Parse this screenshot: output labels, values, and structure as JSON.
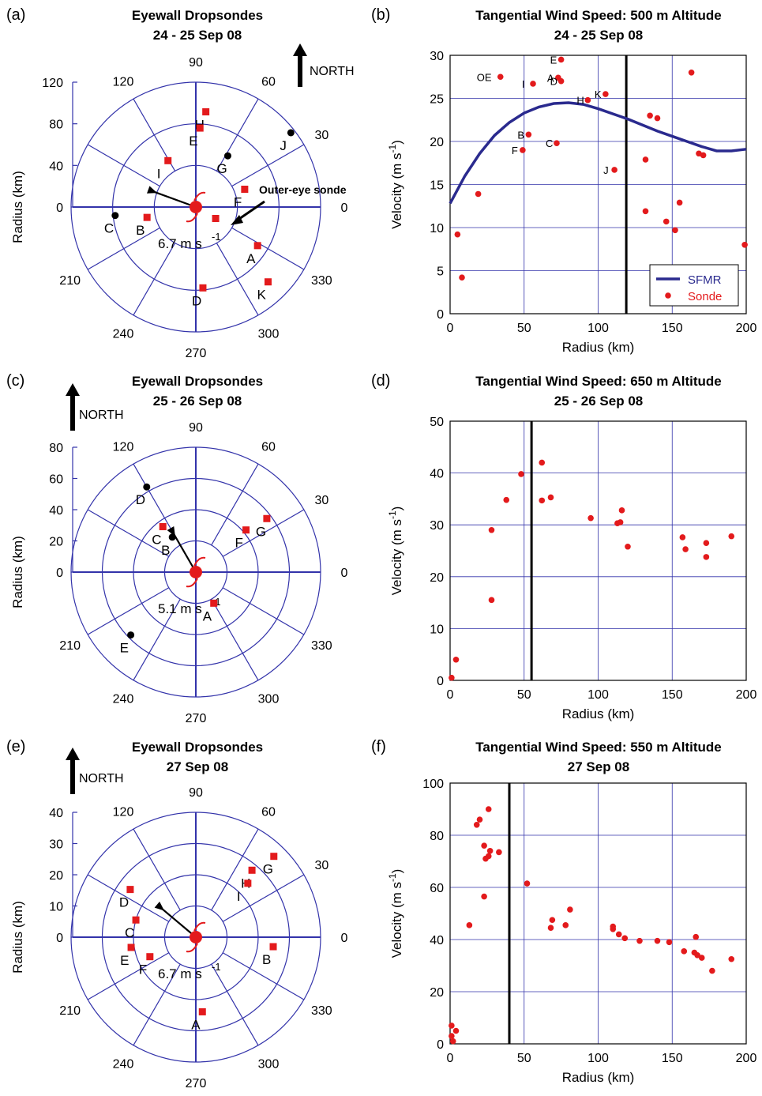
{
  "colors": {
    "grid": "#3333aa",
    "sonde": "#e31a1c",
    "sfmr": "#2a2a8e",
    "black": "#000000"
  },
  "chart_data": [
    {
      "id": "a",
      "type": "polar-scatter",
      "panel_label": "(a)",
      "title": [
        "Eyewall Dropsondes",
        "24 - 25 Sep 08"
      ],
      "ylabel": "Radius (km)",
      "rmax": 120,
      "ring_step": 40,
      "radial_ticks": [
        "0",
        "40",
        "80",
        "120"
      ],
      "angle_labels": [
        "0",
        "30",
        "60",
        "90",
        "120",
        "210",
        "240",
        "270",
        "300",
        "330"
      ],
      "north_label": "NORTH",
      "motion_label": "6.7 m s",
      "motion_sup": "-1",
      "motion_dir_deg": 160,
      "annotation": "Outer-eye sonde",
      "points": [
        {
          "label": "H",
          "r": 92,
          "theta": 84,
          "color": "red"
        },
        {
          "label": "E",
          "r": 76,
          "theta": 87,
          "color": "red"
        },
        {
          "label": "J",
          "r": 116,
          "theta": 38,
          "color": "black"
        },
        {
          "label": "G",
          "r": 58,
          "theta": 58,
          "color": "black"
        },
        {
          "label": "I",
          "r": 52,
          "theta": 121,
          "color": "red"
        },
        {
          "label": "F",
          "r": 50,
          "theta": 20,
          "color": "red"
        },
        {
          "label": "B",
          "r": 48,
          "theta": 192,
          "color": "red"
        },
        {
          "label": "C",
          "r": 78,
          "theta": 186,
          "color": "black"
        },
        {
          "label": "A",
          "r": 70,
          "theta": 328,
          "color": "red"
        },
        {
          "label": "D",
          "r": 78,
          "theta": 275,
          "color": "red"
        },
        {
          "label": "K",
          "r": 100,
          "theta": 314,
          "color": "red"
        },
        {
          "label": "",
          "r": 22,
          "theta": 330,
          "color": "red"
        }
      ]
    },
    {
      "id": "b",
      "type": "scatter",
      "panel_label": "(b)",
      "title": [
        "Tangential Wind Speed: 500 m Altitude",
        "24 - 25 Sep 08"
      ],
      "xlabel": "Radius (km)",
      "ylabel": "Velocity (m s",
      "ylabel_sup": "-1",
      "ylabel_end": ")",
      "xlim": [
        0,
        200
      ],
      "ylim": [
        0,
        30
      ],
      "xticks": [
        0,
        50,
        100,
        150,
        200
      ],
      "yticks": [
        0,
        5,
        10,
        15,
        20,
        25,
        30
      ],
      "vline": 119,
      "legend": [
        {
          "name": "SFMR",
          "kind": "line"
        },
        {
          "name": "Sonde",
          "kind": "dot"
        }
      ],
      "sfmr": {
        "x": [
          0,
          10,
          20,
          30,
          40,
          50,
          60,
          70,
          80,
          90,
          100,
          110,
          120,
          130,
          140,
          150,
          160,
          170,
          180,
          190,
          200
        ],
        "y": [
          12.8,
          16.0,
          18.6,
          20.7,
          22.2,
          23.3,
          24.0,
          24.4,
          24.5,
          24.3,
          23.8,
          23.2,
          22.6,
          21.9,
          21.2,
          20.6,
          20.0,
          19.4,
          18.9,
          18.9,
          19.1
        ]
      },
      "sonde": [
        {
          "x": 75,
          "y": 29.5,
          "label": "E"
        },
        {
          "x": 34,
          "y": 27.5,
          "label": "OE"
        },
        {
          "x": 56,
          "y": 26.7,
          "label": "I"
        },
        {
          "x": 73,
          "y": 27.4,
          "label": "A"
        },
        {
          "x": 75,
          "y": 27.0,
          "label": "D"
        },
        {
          "x": 93,
          "y": 24.8,
          "label": "H"
        },
        {
          "x": 105,
          "y": 25.5,
          "label": "K"
        },
        {
          "x": 163,
          "y": 28.0,
          "label": ""
        },
        {
          "x": 135,
          "y": 23.0,
          "label": ""
        },
        {
          "x": 140,
          "y": 22.7,
          "label": ""
        },
        {
          "x": 53,
          "y": 20.8,
          "label": "B"
        },
        {
          "x": 49,
          "y": 19.0,
          "label": "F"
        },
        {
          "x": 72,
          "y": 19.8,
          "label": "C"
        },
        {
          "x": 168,
          "y": 18.6,
          "label": ""
        },
        {
          "x": 171,
          "y": 18.4,
          "label": ""
        },
        {
          "x": 132,
          "y": 17.9,
          "label": ""
        },
        {
          "x": 111,
          "y": 16.7,
          "label": "J"
        },
        {
          "x": 19,
          "y": 13.9,
          "label": ""
        },
        {
          "x": 155,
          "y": 12.9,
          "label": ""
        },
        {
          "x": 132,
          "y": 11.9,
          "label": ""
        },
        {
          "x": 146,
          "y": 10.7,
          "label": ""
        },
        {
          "x": 152,
          "y": 9.7,
          "label": ""
        },
        {
          "x": 5,
          "y": 9.2,
          "label": ""
        },
        {
          "x": 199,
          "y": 8.0,
          "label": ""
        },
        {
          "x": 8,
          "y": 4.2,
          "label": ""
        }
      ]
    },
    {
      "id": "c",
      "type": "polar-scatter",
      "panel_label": "(c)",
      "title": [
        "Eyewall Dropsondes",
        "25 - 26 Sep 08"
      ],
      "ylabel": "Radius (km)",
      "rmax": 80,
      "ring_step": 20,
      "radial_ticks": [
        "0",
        "20",
        "40",
        "60",
        "80"
      ],
      "angle_labels": [
        "0",
        "30",
        "60",
        "90",
        "120",
        "210",
        "240",
        "270",
        "300",
        "330"
      ],
      "north_label": "NORTH",
      "motion_label": "5.1 m s",
      "motion_sup": "-1",
      "motion_dir_deg": 120,
      "points": [
        {
          "label": "D",
          "r": 63,
          "theta": 120,
          "color": "black"
        },
        {
          "label": "C",
          "r": 36,
          "theta": 126,
          "color": "red"
        },
        {
          "label": "B",
          "r": 27,
          "theta": 124,
          "color": "black"
        },
        {
          "label": "F",
          "r": 42,
          "theta": 40,
          "color": "red"
        },
        {
          "label": "G",
          "r": 57,
          "theta": 37,
          "color": "red"
        },
        {
          "label": "A",
          "r": 23,
          "theta": 300,
          "color": "red"
        },
        {
          "label": "E",
          "r": 58,
          "theta": 224,
          "color": "black"
        }
      ]
    },
    {
      "id": "d",
      "type": "scatter",
      "panel_label": "(d)",
      "title": [
        "Tangential Wind Speed: 650 m Altitude",
        "25 - 26 Sep 08"
      ],
      "xlabel": "Radius (km)",
      "ylabel": "Velocity (m s",
      "ylabel_sup": "-1",
      "ylabel_end": ")",
      "xlim": [
        0,
        200
      ],
      "ylim": [
        0,
        50
      ],
      "xticks": [
        0,
        50,
        100,
        150,
        200
      ],
      "yticks": [
        0,
        10,
        20,
        30,
        40,
        50
      ],
      "vline": 55,
      "sonde": [
        {
          "x": 1,
          "y": 0.5
        },
        {
          "x": 4,
          "y": 4.0
        },
        {
          "x": 28,
          "y": 29.0
        },
        {
          "x": 28,
          "y": 15.5
        },
        {
          "x": 38,
          "y": 34.8
        },
        {
          "x": 48,
          "y": 39.8
        },
        {
          "x": 62,
          "y": 42.0
        },
        {
          "x": 62,
          "y": 34.7
        },
        {
          "x": 68,
          "y": 35.3
        },
        {
          "x": 95,
          "y": 31.3
        },
        {
          "x": 113,
          "y": 30.3
        },
        {
          "x": 115,
          "y": 30.5
        },
        {
          "x": 116,
          "y": 32.8
        },
        {
          "x": 120,
          "y": 25.8
        },
        {
          "x": 157,
          "y": 27.6
        },
        {
          "x": 159,
          "y": 25.3
        },
        {
          "x": 173,
          "y": 26.5
        },
        {
          "x": 173,
          "y": 23.8
        },
        {
          "x": 190,
          "y": 27.8
        }
      ]
    },
    {
      "id": "e",
      "type": "polar-scatter",
      "panel_label": "(e)",
      "title": [
        "Eyewall Dropsondes",
        "27 Sep 08"
      ],
      "ylabel": "Radius (km)",
      "rmax": 40,
      "ring_step": 10,
      "radial_ticks": [
        "0",
        "10",
        "20",
        "30",
        "40"
      ],
      "angle_labels": [
        "0",
        "30",
        "60",
        "90",
        "120",
        "210",
        "240",
        "270",
        "300",
        "330"
      ],
      "north_label": "NORTH",
      "motion_label": "6.7 m s",
      "motion_sup": "-1",
      "motion_dir_deg": 140,
      "points": [
        {
          "label": "D",
          "r": 26,
          "theta": 144,
          "color": "red"
        },
        {
          "label": "C",
          "r": 20,
          "theta": 164,
          "color": "red"
        },
        {
          "label": "E",
          "r": 21,
          "theta": 189,
          "color": "red"
        },
        {
          "label": "F",
          "r": 16,
          "theta": 203,
          "color": "red"
        },
        {
          "label": "H",
          "r": 28,
          "theta": 50,
          "color": "red"
        },
        {
          "label": "G",
          "r": 36,
          "theta": 46,
          "color": "red"
        },
        {
          "label": "I",
          "r": 24,
          "theta": 46,
          "color": "red"
        },
        {
          "label": "B",
          "r": 25,
          "theta": 353,
          "color": "red"
        },
        {
          "label": "A",
          "r": 24,
          "theta": 275,
          "color": "red"
        }
      ]
    },
    {
      "id": "f",
      "type": "scatter",
      "panel_label": "(f)",
      "title": [
        "Tangential Wind Speed: 550 m Altitude",
        "27 Sep 08"
      ],
      "xlabel": "Radius (km)",
      "ylabel": "Velocity (m s",
      "ylabel_sup": "-1",
      "ylabel_end": ")",
      "xlim": [
        0,
        200
      ],
      "ylim": [
        0,
        100
      ],
      "xticks": [
        0,
        50,
        100,
        150,
        200
      ],
      "yticks": [
        0,
        20,
        40,
        60,
        80,
        100
      ],
      "vline": 40,
      "sonde": [
        {
          "x": 1,
          "y": 7
        },
        {
          "x": 1,
          "y": 3
        },
        {
          "x": 2,
          "y": 1
        },
        {
          "x": 4,
          "y": 5
        },
        {
          "x": 13,
          "y": 45.5
        },
        {
          "x": 18,
          "y": 84
        },
        {
          "x": 20,
          "y": 86
        },
        {
          "x": 23,
          "y": 76
        },
        {
          "x": 24,
          "y": 71
        },
        {
          "x": 26,
          "y": 72
        },
        {
          "x": 27,
          "y": 74
        },
        {
          "x": 23,
          "y": 56.5
        },
        {
          "x": 26,
          "y": 90
        },
        {
          "x": 33,
          "y": 73.5
        },
        {
          "x": 52,
          "y": 61.5
        },
        {
          "x": 68,
          "y": 44.5
        },
        {
          "x": 69,
          "y": 47.5
        },
        {
          "x": 78,
          "y": 45.5
        },
        {
          "x": 81,
          "y": 51.5
        },
        {
          "x": 110,
          "y": 45
        },
        {
          "x": 110,
          "y": 44
        },
        {
          "x": 114,
          "y": 42
        },
        {
          "x": 118,
          "y": 40.5
        },
        {
          "x": 128,
          "y": 39.5
        },
        {
          "x": 140,
          "y": 39.5
        },
        {
          "x": 148,
          "y": 39
        },
        {
          "x": 158,
          "y": 35.5
        },
        {
          "x": 166,
          "y": 41
        },
        {
          "x": 165,
          "y": 35
        },
        {
          "x": 167,
          "y": 34
        },
        {
          "x": 170,
          "y": 33
        },
        {
          "x": 177,
          "y": 28
        },
        {
          "x": 190,
          "y": 32.5
        }
      ]
    }
  ]
}
